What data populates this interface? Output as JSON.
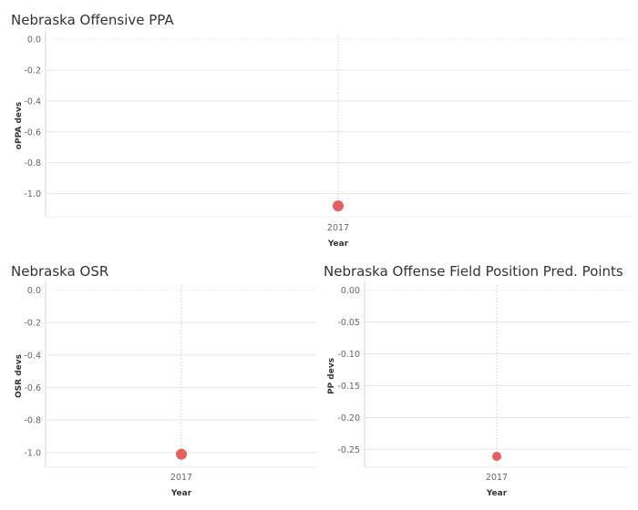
{
  "colors": {
    "point": "#e15759",
    "grid": "#e6e6e6",
    "axis": "#d4d4d4"
  },
  "chart_data": [
    {
      "type": "scatter",
      "title": "Nebraska Offensive PPA",
      "xlabel": "Year",
      "ylabel": "oPPA devs",
      "categories": [
        "2017"
      ],
      "values": [
        -1.08
      ],
      "ylim": [
        -1.15,
        0.03
      ],
      "yticks": [
        0.0,
        -0.2,
        -0.4,
        -0.6,
        -0.8,
        -1.0
      ],
      "ytick_labels": [
        "0.0",
        "-0.2",
        "-0.4",
        "-0.6",
        "-0.8",
        "-1.0"
      ],
      "grid": true
    },
    {
      "type": "scatter",
      "title": "Nebraska OSR",
      "xlabel": "Year",
      "ylabel": "OSR devs",
      "categories": [
        "2017"
      ],
      "values": [
        -1.01
      ],
      "ylim": [
        -1.09,
        0.03
      ],
      "yticks": [
        0.0,
        -0.2,
        -0.4,
        -0.6,
        -0.8,
        -1.0
      ],
      "ytick_labels": [
        "0.0",
        "-0.2",
        "-0.4",
        "-0.6",
        "-0.8",
        "-1.0"
      ],
      "grid": true
    },
    {
      "type": "scatter",
      "title": "Nebraska Offense Field Position Pred. Points",
      "xlabel": "Year",
      "ylabel": "PP devs",
      "categories": [
        "2017"
      ],
      "values": [
        -0.261
      ],
      "ylim": [
        -0.278,
        0.008
      ],
      "yticks": [
        0.0,
        -0.05,
        -0.1,
        -0.15,
        -0.2,
        -0.25
      ],
      "ytick_labels": [
        "0.00",
        "-0.05",
        "-0.10",
        "-0.15",
        "-0.20",
        "-0.25"
      ],
      "grid": true
    }
  ]
}
